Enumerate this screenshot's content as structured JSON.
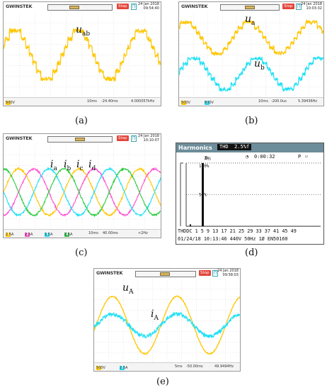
{
  "scope": {
    "brand": "GWINSTEK",
    "stop_label": "Stop",
    "trig_glyph": "∏",
    "panel_a": {
      "date": "24 Jan 2018",
      "time": "09:54:40",
      "freq": "4.000057kHz",
      "bottom_left": "500V",
      "timebase": "10ms",
      "delay": "-24.40ms",
      "trig_level": "0.00V"
    },
    "panel_b": {
      "date": "24 Jan 2018",
      "time": "10:03:32",
      "freq": "5.39436Hz",
      "bottom_left_1": "500V",
      "bottom_left_2": "500V",
      "timebase": "10ms",
      "delay": "-200.0us"
    },
    "panel_c": {
      "date": "24 Jan 2018",
      "time": "10:10:07",
      "freq": "<2Hz",
      "bottom_left_1": "2.5A",
      "bottom_left_2": "2.5A",
      "bottom_left_3": "2.5A",
      "bottom_left_4": "2.5A",
      "timebase": "10ms",
      "delay": "40.00ms"
    },
    "panel_e": {
      "date": "24 Jan 2018",
      "time": "09:58:03",
      "freq": "49.9494Hz",
      "bottom_left_1": "500V",
      "bottom_left_2": "2.5A",
      "timebase": "5ms",
      "delay": "-50.00ms"
    }
  },
  "labels": {
    "a": {
      "sym": "u",
      "sub": "ab"
    },
    "b1": {
      "sym": "u",
      "sub": "a"
    },
    "b2": {
      "sym": "u",
      "sub": "b"
    },
    "c1": {
      "sym": "i",
      "sub": "a"
    },
    "c2": {
      "sym": "i",
      "sub": "b"
    },
    "c3": {
      "sym": "i",
      "sub": "c"
    },
    "c4": {
      "sym": "i",
      "sub": "d"
    },
    "e1": {
      "sym": "u",
      "sub": "A"
    },
    "e2": {
      "sym": "i",
      "sub": "A"
    }
  },
  "captions": {
    "a": "(a)",
    "b": "(b)",
    "c": "(c)",
    "d": "(d)",
    "e": "(e)"
  },
  "harmonics": {
    "title": "Harmonics",
    "thd_label": "THD",
    "thd_value": "2.5%f",
    "sub_label": "P",
    "sub_unit": "AMS",
    "clock": "0:00:32",
    "pct_100": "100%",
    "pct_50": "50%",
    "axis_start": "THDDC",
    "axis_orders": "1  5  9  13 17 21 25 29 33 37 41 45 49",
    "footer": "01/24/18  10:13:46    440V  50Hz 1Ø      EN50160"
  },
  "colors": {
    "yellow": "#ffc600",
    "cyan": "#1fe0f5",
    "magenta": "#ff4fd0",
    "green": "#2ecc40",
    "grid": "#c8c8c8"
  },
  "chart_data": [
    {
      "type": "line",
      "id": "a",
      "series": [
        {
          "values_desc": "line voltage u_ab, 7-level stepped waveform, ~2.5 cycles"
        }
      ],
      "xlabel": "",
      "ylabel": ""
    },
    {
      "type": "line",
      "id": "b",
      "series": [
        {
          "values_desc": "phase voltage u_a, stepped waveform"
        },
        {
          "values_desc": "phase voltage u_b, stepped waveform"
        }
      ]
    },
    {
      "type": "line",
      "id": "c",
      "series": [
        {
          "values_desc": "i_a sinusoid"
        },
        {
          "values_desc": "i_b sinusoid"
        },
        {
          "values_desc": "i_c sinusoid"
        },
        {
          "values_desc": "i_d sinusoid"
        }
      ]
    },
    {
      "type": "bar",
      "id": "d",
      "categories": [
        "THD",
        "DC",
        "1",
        "2",
        "3",
        "4",
        "5"
      ],
      "values": [
        2.5,
        3,
        100,
        0,
        0,
        0,
        0.5
      ],
      "ylim": [
        0,
        100
      ],
      "yticks": [
        "50%",
        "100%"
      ]
    },
    {
      "type": "line",
      "id": "e",
      "series": [
        {
          "values_desc": "voltage u_A sinusoid, large amplitude"
        },
        {
          "values_desc": "current i_A sinusoid, small amplitude"
        }
      ]
    }
  ]
}
